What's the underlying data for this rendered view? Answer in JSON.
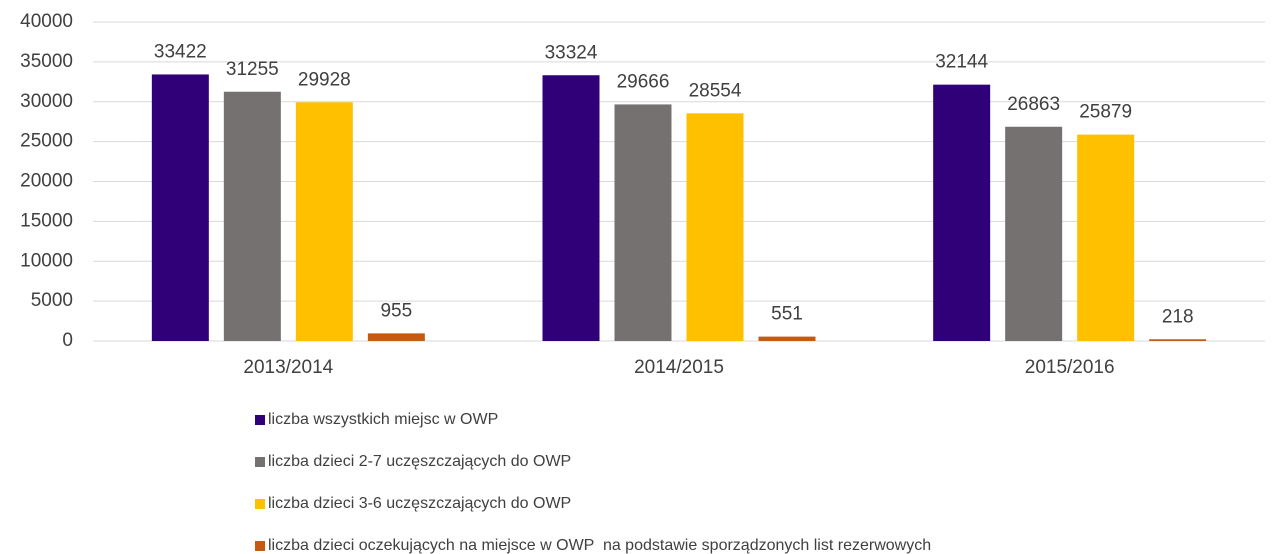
{
  "chart_data": {
    "type": "bar",
    "categories": [
      "2013/2014",
      "2014/2015",
      "2015/2016"
    ],
    "series": [
      {
        "name": "liczba wszystkich miejsc w OWP",
        "color": "#300078",
        "values": [
          33422,
          33324,
          32144
        ]
      },
      {
        "name": "liczba dzieci 2-7 uczęszczających do OWP",
        "color": "#767171",
        "values": [
          31255,
          29666,
          26863
        ]
      },
      {
        "name": "liczba dzieci 3-6 uczęszczających do OWP",
        "color": "#ffc000",
        "values": [
          29928,
          28554,
          25879
        ]
      },
      {
        "name": "liczba dzieci oczekujących na miejsce w OWP  na podstawie sporządzonych list rezerwowych",
        "color": "#c55a11",
        "values": [
          955,
          551,
          218
        ]
      }
    ],
    "ylim": [
      0,
      40000
    ],
    "yticks": [
      0,
      5000,
      10000,
      15000,
      20000,
      25000,
      30000,
      35000,
      40000
    ],
    "grid": true,
    "legend": "bottom"
  }
}
